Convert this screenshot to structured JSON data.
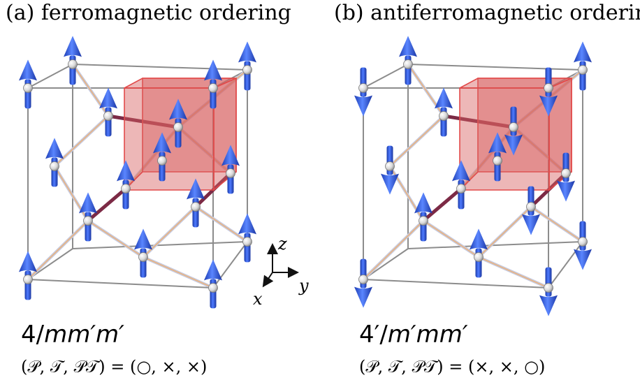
{
  "panels": [
    {
      "id": "a",
      "title": "(a) ferromagnetic ordering",
      "group_parts": [
        {
          "t": "4/",
          "it": false
        },
        {
          "t": "mm′m′",
          "it": true
        }
      ],
      "pt_text": "(𝒫, 𝒯, 𝒫𝒯) = (○, ×, ×)",
      "moments": "ferro"
    },
    {
      "id": "b",
      "title": "(b) antiferromagnetic ordering",
      "group_parts": [
        {
          "t": "4′/",
          "it": false
        },
        {
          "t": "m′mm′",
          "it": true
        }
      ],
      "pt_text": "(𝒫, 𝒯, 𝒫𝒯) = (×, ×, ○)",
      "moments": "antiferro"
    }
  ],
  "axes": {
    "x": "x",
    "y": "y",
    "z": "z"
  },
  "colors": {
    "arrow_blue": "#2f59dc",
    "unit_cell": "#e24a4a",
    "lattice_edge": "#8c8c8c",
    "bond_dark": "#7c2a45"
  }
}
